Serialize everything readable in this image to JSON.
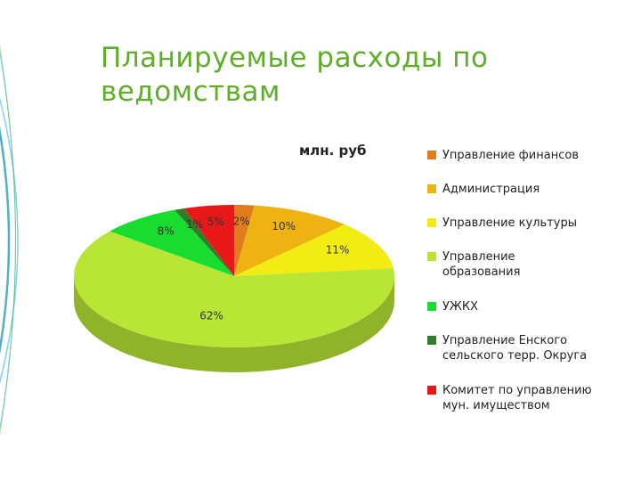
{
  "title_lines": [
    "Планируемые расходы по",
    "ведомствам"
  ],
  "chart_data": {
    "type": "pie",
    "subtitle": "млн. руб",
    "three_d": true,
    "categories": [
      "Управление финансов",
      "Администрация",
      "Управление культуры",
      "Управление образования",
      "УЖКХ",
      "Управление Енского сельского терр. Округа",
      "Комитет по управлению мун. имуществом"
    ],
    "values": [
      2,
      10,
      11,
      62,
      8,
      1,
      5
    ],
    "data_labels": [
      "2%",
      "10%",
      "11%",
      "62%",
      "8%",
      "1%",
      "5%"
    ],
    "colors": [
      "#e07b1e",
      "#eeb212",
      "#f2ec12",
      "#b9e536",
      "#18dc2e",
      "#2e7d2a",
      "#e81818"
    ],
    "legend_position": "right",
    "legend_lines": [
      [
        "Управление финансов"
      ],
      [
        "Администрация"
      ],
      [
        "Управление культуры"
      ],
      [
        "Управление",
        "образования"
      ],
      [
        "УЖКХ"
      ],
      [
        "Управление Енского",
        "сельского терр. Округа"
      ],
      [
        "Комитет по управлению",
        "мун. имуществом"
      ]
    ]
  }
}
